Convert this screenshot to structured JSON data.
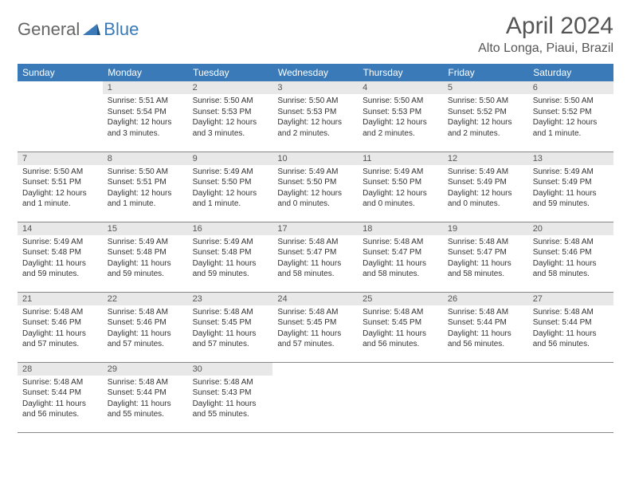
{
  "brand": {
    "general": "General",
    "blue": "Blue"
  },
  "title": "April 2024",
  "location": "Alto Longa, Piaui, Brazil",
  "colors": {
    "header_bg": "#3a7ab8",
    "daynum_bg": "#e8e8e8",
    "rule": "#888888",
    "text": "#333333",
    "logo_blue": "#3a7ab8",
    "logo_grey": "#666666"
  },
  "weekdays": [
    "Sunday",
    "Monday",
    "Tuesday",
    "Wednesday",
    "Thursday",
    "Friday",
    "Saturday"
  ],
  "weeks": [
    [
      {
        "n": "",
        "lines": []
      },
      {
        "n": "1",
        "lines": [
          "Sunrise: 5:51 AM",
          "Sunset: 5:54 PM",
          "Daylight: 12 hours and 3 minutes."
        ]
      },
      {
        "n": "2",
        "lines": [
          "Sunrise: 5:50 AM",
          "Sunset: 5:53 PM",
          "Daylight: 12 hours and 3 minutes."
        ]
      },
      {
        "n": "3",
        "lines": [
          "Sunrise: 5:50 AM",
          "Sunset: 5:53 PM",
          "Daylight: 12 hours and 2 minutes."
        ]
      },
      {
        "n": "4",
        "lines": [
          "Sunrise: 5:50 AM",
          "Sunset: 5:53 PM",
          "Daylight: 12 hours and 2 minutes."
        ]
      },
      {
        "n": "5",
        "lines": [
          "Sunrise: 5:50 AM",
          "Sunset: 5:52 PM",
          "Daylight: 12 hours and 2 minutes."
        ]
      },
      {
        "n": "6",
        "lines": [
          "Sunrise: 5:50 AM",
          "Sunset: 5:52 PM",
          "Daylight: 12 hours and 1 minute."
        ]
      }
    ],
    [
      {
        "n": "7",
        "lines": [
          "Sunrise: 5:50 AM",
          "Sunset: 5:51 PM",
          "Daylight: 12 hours and 1 minute."
        ]
      },
      {
        "n": "8",
        "lines": [
          "Sunrise: 5:50 AM",
          "Sunset: 5:51 PM",
          "Daylight: 12 hours and 1 minute."
        ]
      },
      {
        "n": "9",
        "lines": [
          "Sunrise: 5:49 AM",
          "Sunset: 5:50 PM",
          "Daylight: 12 hours and 1 minute."
        ]
      },
      {
        "n": "10",
        "lines": [
          "Sunrise: 5:49 AM",
          "Sunset: 5:50 PM",
          "Daylight: 12 hours and 0 minutes."
        ]
      },
      {
        "n": "11",
        "lines": [
          "Sunrise: 5:49 AM",
          "Sunset: 5:50 PM",
          "Daylight: 12 hours and 0 minutes."
        ]
      },
      {
        "n": "12",
        "lines": [
          "Sunrise: 5:49 AM",
          "Sunset: 5:49 PM",
          "Daylight: 12 hours and 0 minutes."
        ]
      },
      {
        "n": "13",
        "lines": [
          "Sunrise: 5:49 AM",
          "Sunset: 5:49 PM",
          "Daylight: 11 hours and 59 minutes."
        ]
      }
    ],
    [
      {
        "n": "14",
        "lines": [
          "Sunrise: 5:49 AM",
          "Sunset: 5:48 PM",
          "Daylight: 11 hours and 59 minutes."
        ]
      },
      {
        "n": "15",
        "lines": [
          "Sunrise: 5:49 AM",
          "Sunset: 5:48 PM",
          "Daylight: 11 hours and 59 minutes."
        ]
      },
      {
        "n": "16",
        "lines": [
          "Sunrise: 5:49 AM",
          "Sunset: 5:48 PM",
          "Daylight: 11 hours and 59 minutes."
        ]
      },
      {
        "n": "17",
        "lines": [
          "Sunrise: 5:48 AM",
          "Sunset: 5:47 PM",
          "Daylight: 11 hours and 58 minutes."
        ]
      },
      {
        "n": "18",
        "lines": [
          "Sunrise: 5:48 AM",
          "Sunset: 5:47 PM",
          "Daylight: 11 hours and 58 minutes."
        ]
      },
      {
        "n": "19",
        "lines": [
          "Sunrise: 5:48 AM",
          "Sunset: 5:47 PM",
          "Daylight: 11 hours and 58 minutes."
        ]
      },
      {
        "n": "20",
        "lines": [
          "Sunrise: 5:48 AM",
          "Sunset: 5:46 PM",
          "Daylight: 11 hours and 58 minutes."
        ]
      }
    ],
    [
      {
        "n": "21",
        "lines": [
          "Sunrise: 5:48 AM",
          "Sunset: 5:46 PM",
          "Daylight: 11 hours and 57 minutes."
        ]
      },
      {
        "n": "22",
        "lines": [
          "Sunrise: 5:48 AM",
          "Sunset: 5:46 PM",
          "Daylight: 11 hours and 57 minutes."
        ]
      },
      {
        "n": "23",
        "lines": [
          "Sunrise: 5:48 AM",
          "Sunset: 5:45 PM",
          "Daylight: 11 hours and 57 minutes."
        ]
      },
      {
        "n": "24",
        "lines": [
          "Sunrise: 5:48 AM",
          "Sunset: 5:45 PM",
          "Daylight: 11 hours and 57 minutes."
        ]
      },
      {
        "n": "25",
        "lines": [
          "Sunrise: 5:48 AM",
          "Sunset: 5:45 PM",
          "Daylight: 11 hours and 56 minutes."
        ]
      },
      {
        "n": "26",
        "lines": [
          "Sunrise: 5:48 AM",
          "Sunset: 5:44 PM",
          "Daylight: 11 hours and 56 minutes."
        ]
      },
      {
        "n": "27",
        "lines": [
          "Sunrise: 5:48 AM",
          "Sunset: 5:44 PM",
          "Daylight: 11 hours and 56 minutes."
        ]
      }
    ],
    [
      {
        "n": "28",
        "lines": [
          "Sunrise: 5:48 AM",
          "Sunset: 5:44 PM",
          "Daylight: 11 hours and 56 minutes."
        ]
      },
      {
        "n": "29",
        "lines": [
          "Sunrise: 5:48 AM",
          "Sunset: 5:44 PM",
          "Daylight: 11 hours and 55 minutes."
        ]
      },
      {
        "n": "30",
        "lines": [
          "Sunrise: 5:48 AM",
          "Sunset: 5:43 PM",
          "Daylight: 11 hours and 55 minutes."
        ]
      },
      {
        "n": "",
        "lines": []
      },
      {
        "n": "",
        "lines": []
      },
      {
        "n": "",
        "lines": []
      },
      {
        "n": "",
        "lines": []
      }
    ]
  ]
}
